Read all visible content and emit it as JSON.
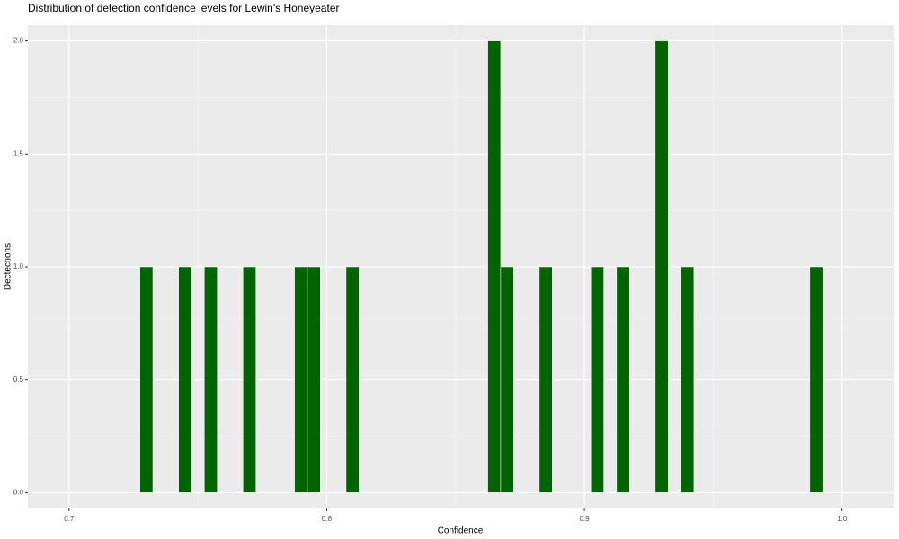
{
  "chart_data": {
    "type": "histogram",
    "title": "Distribution of detection confidence levels for Lewin's Honeyeater",
    "xlabel": "Confidence",
    "ylabel": "Dectections",
    "color": "#006400",
    "bins": [
      0.7275,
      0.7325,
      0.7375,
      0.7425,
      0.7475,
      0.7525,
      0.7575,
      0.7625,
      0.7675,
      0.7725,
      0.7775,
      0.7825,
      0.7875,
      0.7925,
      0.7975,
      0.8025,
      0.8075,
      0.8125,
      0.8175,
      0.8225,
      0.8275,
      0.8325,
      0.8375,
      0.8425,
      0.8475,
      0.8525,
      0.8575,
      0.8625,
      0.8675,
      0.8725,
      0.8775,
      0.8825,
      0.8875,
      0.8925,
      0.8975,
      0.9025,
      0.9075,
      0.9125,
      0.9175,
      0.9225,
      0.9275,
      0.9325,
      0.9375,
      0.9425,
      0.9475,
      0.9525,
      0.9575,
      0.9625,
      0.9675,
      0.9725,
      0.9775,
      0.9825,
      0.9875,
      0.9925
    ],
    "values": [
      1,
      0,
      0,
      1,
      0,
      1,
      0,
      0,
      1,
      0,
      0,
      0,
      1,
      1,
      0,
      0,
      1,
      0,
      0,
      0,
      0,
      0,
      0,
      0,
      0,
      0,
      0,
      2,
      1,
      0,
      0,
      1,
      0,
      0,
      0,
      1,
      0,
      1,
      0,
      0,
      2,
      0,
      1,
      0,
      0,
      0,
      0,
      0,
      0,
      0,
      0,
      0,
      1
    ],
    "xlim": [
      0.684,
      1.02
    ],
    "xticks": [
      0.7,
      0.8,
      0.9,
      {
        "value": 1,
        "label": "1.0"
      }
    ],
    "ylim": [
      -0.07,
      2.07
    ],
    "yticks": [
      {
        "value": 0,
        "label": "0.0"
      },
      0.5,
      {
        "value": 1,
        "label": "1.0"
      },
      1.5,
      {
        "value": 2,
        "label": "2.0"
      }
    ],
    "grid": true
  }
}
